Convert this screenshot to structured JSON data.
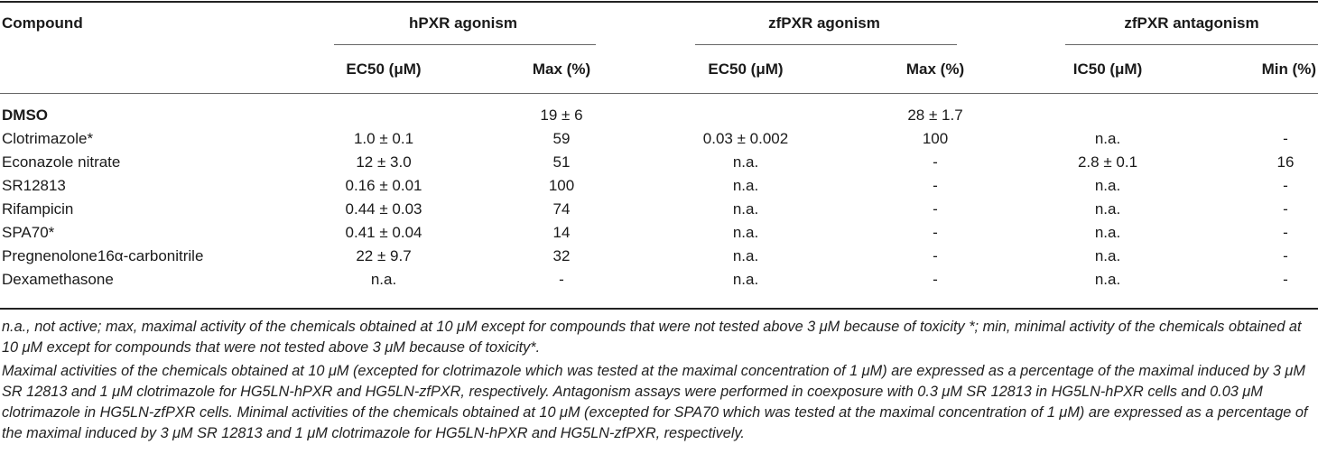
{
  "table": {
    "header": {
      "compound": "Compound",
      "groups": [
        "hPXR agonism",
        "zfPXR agonism",
        "zfPXR antagonism"
      ],
      "subcols": [
        "EC50 (μM)",
        "Max (%)",
        "EC50 (μM)",
        "Max (%)",
        "IC50 (μM)",
        "Min (%)"
      ]
    },
    "rows": [
      {
        "name": "DMSO",
        "vals": [
          "",
          "19 ± 6",
          "",
          "28 ± 1.7",
          "",
          ""
        ]
      },
      {
        "name": "Clotrimazole*",
        "vals": [
          "1.0 ± 0.1",
          "59",
          "0.03 ± 0.002",
          "100",
          "n.a.",
          "-"
        ]
      },
      {
        "name": "Econazole nitrate",
        "vals": [
          "12 ± 3.0",
          "51",
          "n.a.",
          "-",
          "2.8 ± 0.1",
          "16"
        ]
      },
      {
        "name": "SR12813",
        "vals": [
          "0.16 ± 0.01",
          "100",
          "n.a.",
          "-",
          "n.a.",
          "-"
        ]
      },
      {
        "name": "Rifampicin",
        "vals": [
          "0.44 ± 0.03",
          "74",
          "n.a.",
          "-",
          "n.a.",
          "-"
        ]
      },
      {
        "name": "SPA70*",
        "vals": [
          "0.41 ± 0.04",
          "14",
          "n.a.",
          "-",
          "n.a.",
          "-"
        ]
      },
      {
        "name": "Pregnenolone16α-carbonitrile",
        "vals": [
          "22 ± 9.7",
          "32",
          "n.a.",
          "-",
          "n.a.",
          "-"
        ]
      },
      {
        "name": "Dexamethasone",
        "vals": [
          "n.a.",
          "-",
          "n.a.",
          "-",
          "n.a.",
          "-"
        ]
      }
    ]
  },
  "footnotes": [
    "n.a., not active; max, maximal activity of the chemicals obtained at 10 μM except for compounds that were not tested above 3 μM because of toxicity *; min, minimal activity of the chemicals obtained at 10 μM except for compounds that were not tested above 3 μM because of toxicity*.",
    "Maximal activities of the chemicals obtained at 10 μM (excepted for clotrimazole which was tested at the maximal concentration of 1 μM) are expressed as a percentage of the maximal induced by 3 μM SR 12813 and 1 μM clotrimazole for HG5LN-hPXR and HG5LN-zfPXR, respectively. Antagonism assays were performed in coexposure with 0.3 μM SR 12813 in HG5LN-hPXR cells and 0.03 μM clotrimazole in HG5LN-zfPXR cells. Minimal activities of the chemicals obtained at 10 μM (excepted for SPA70 which was tested at the maximal concentration of 1 μM) are expressed as a percentage of the maximal induced by 3 μM SR 12813 and 1 μM clotrimazole for HG5LN-hPXR and HG5LN-zfPXR, respectively."
  ]
}
